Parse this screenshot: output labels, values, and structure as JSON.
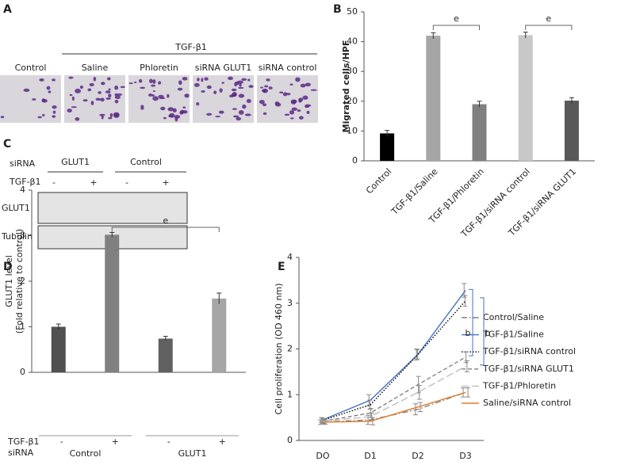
{
  "panel_a": {
    "letter": "A",
    "group_label": "TGF-β1",
    "images": [
      "Control",
      "Saline",
      "Phloretin",
      "siRNA GLUT1",
      "siRNA control"
    ]
  },
  "panel_c": {
    "letter": "C",
    "row_labels": [
      "siRNA",
      "TGF-β1"
    ],
    "groups": [
      "GLUT1",
      "Control"
    ],
    "treatment": [
      "-",
      "+",
      "-",
      "+"
    ],
    "bands": [
      "GLUT1",
      "Tubulin"
    ]
  },
  "chart_data": [
    {
      "type": "bar",
      "letter": "B",
      "ylabel": "Migrated cells/HPF",
      "categories": [
        "Control",
        "TGF-β1/Saline",
        "TGF-β1/Phloretin",
        "TGF-β1/siRNA control",
        "TGF-β1/siRNA GLUT1"
      ],
      "values": [
        9.2,
        42,
        19,
        42.2,
        20.2
      ],
      "errors": [
        1,
        1,
        1,
        1,
        1
      ],
      "colors": [
        "#000000",
        "#a6a6a6",
        "#808080",
        "#c8c8c8",
        "#595959"
      ],
      "ylim": [
        0,
        50
      ],
      "yticks": [
        0,
        10,
        20,
        30,
        40,
        50
      ],
      "x_label_rotation": -45,
      "annotations": [
        "e",
        "e"
      ]
    },
    {
      "type": "bar",
      "letter": "D",
      "ylabel": [
        "GLUT1 level",
        "(Fold relative to control)"
      ],
      "categories": [
        "-",
        "+",
        "-",
        "+"
      ],
      "row_labels": [
        "TGF-β1",
        "siRNA"
      ],
      "groups": [
        "Control",
        "GLUT1"
      ],
      "values": [
        1.0,
        3.02,
        0.74,
        1.62
      ],
      "errors": [
        0.06,
        0.05,
        0.05,
        0.12
      ],
      "colors": [
        "#505050",
        "#808080",
        "#606060",
        "#a6a6a6"
      ],
      "ylim": [
        0,
        4
      ],
      "yticks": [
        0,
        1,
        2,
        3,
        4
      ],
      "annotations": [
        "e"
      ]
    },
    {
      "type": "line",
      "letter": "E",
      "ylabel": "Cell proliferation (OD 460 nm)",
      "categories": [
        "DO",
        "D1",
        "D2",
        "D3"
      ],
      "ylim": [
        0,
        4
      ],
      "yticks": [
        0,
        1,
        2,
        3,
        4
      ],
      "series": [
        {
          "name": "Control/Saline",
          "color": "#808080",
          "dash": "dashdot",
          "values": [
            0.4,
            0.45,
            0.68,
            1.05
          ],
          "errors": [
            0.05,
            0.1,
            0.12,
            0.1
          ]
        },
        {
          "name": "TGF-β1/Saline",
          "color": "#4472c4",
          "dash": "solid",
          "values": [
            0.45,
            0.88,
            1.88,
            3.28
          ],
          "errors": [
            0.05,
            0.12,
            0.12,
            0.15
          ]
        },
        {
          "name": "TGF-β1/siRNA control",
          "color": "#000000",
          "dash": "dot",
          "values": [
            0.44,
            0.78,
            1.88,
            3.05
          ],
          "errors": [
            0.05,
            0.1,
            0.1,
            0.12
          ]
        },
        {
          "name": "TGF-β1/siRNA GLUT1",
          "color": "#808080",
          "dash": "dash",
          "values": [
            0.42,
            0.6,
            1.22,
            1.82
          ],
          "errors": [
            0.05,
            0.1,
            0.18,
            0.12
          ]
        },
        {
          "name": "TGF-β1/Phloretin",
          "color": "#bfbfbf",
          "dash": "longdash",
          "values": [
            0.42,
            0.52,
            1.05,
            1.62
          ],
          "errors": [
            0.05,
            0.08,
            0.15,
            0.12
          ]
        },
        {
          "name": "Saline/siRNA control",
          "color": "#e07b28",
          "dash": "solid",
          "values": [
            0.4,
            0.42,
            0.73,
            1.05
          ],
          "errors": [
            0.05,
            0.08,
            0.1,
            0.1
          ]
        }
      ],
      "annotations": [
        "b",
        "b"
      ]
    }
  ]
}
